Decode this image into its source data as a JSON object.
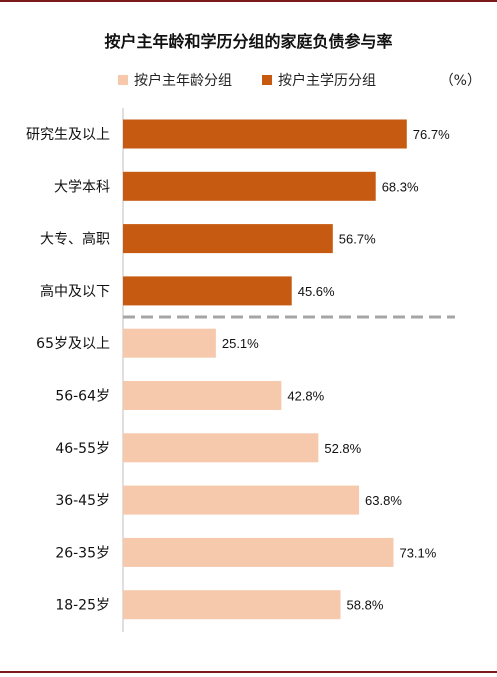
{
  "chart_data": {
    "type": "bar",
    "orientation": "horizontal",
    "title": "按户主年龄和学历分组的家庭负债参与率",
    "unit": "（%）",
    "legend": [
      {
        "name": "按户主年龄分组",
        "color": "#f6c9ad"
      },
      {
        "name": "按户主学历分组",
        "color": "#c65a11"
      }
    ],
    "categories": [
      "研究生及以上",
      "大学本科",
      "大专、高职",
      "高中及以下",
      "65岁及以上",
      "56-64岁",
      "46-55岁",
      "36-45岁",
      "26-35岁",
      "18-25岁"
    ],
    "values": [
      76.7,
      68.3,
      56.7,
      45.6,
      25.1,
      42.8,
      52.8,
      63.8,
      73.1,
      58.8
    ],
    "value_labels": [
      "76.7%",
      "68.3%",
      "56.7%",
      "45.6%",
      "25.1%",
      "42.8%",
      "52.8%",
      "63.8%",
      "73.1%",
      "58.8%"
    ],
    "groups": [
      "按户主学历分组",
      "按户主学历分组",
      "按户主学历分组",
      "按户主学历分组",
      "按户主年龄分组",
      "按户主年龄分组",
      "按户主年龄分组",
      "按户主年龄分组",
      "按户主年龄分组",
      "按户主年龄分组"
    ],
    "xlim": [
      0,
      100
    ],
    "grid": false,
    "legend_position": "top",
    "separator": "dashed line between the education group and the age group"
  }
}
